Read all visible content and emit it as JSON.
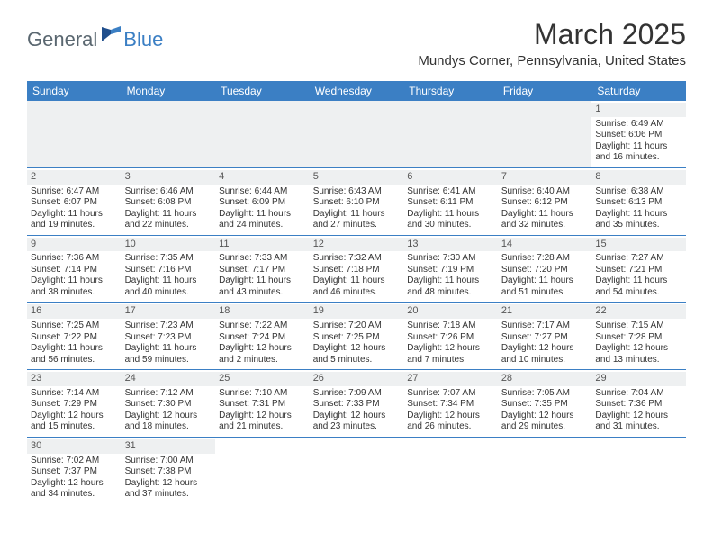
{
  "logo": {
    "part1": "General",
    "part2": "Blue"
  },
  "title": "March 2025",
  "location": "Mundys Corner, Pennsylvania, United States",
  "colors": {
    "header_bg": "#3b7fc4",
    "header_text": "#ffffff",
    "daynum_bg": "#eef0f1",
    "border": "#3b7fc4",
    "logo_gray": "#5a6770",
    "logo_blue": "#3b7fc4"
  },
  "daysOfWeek": [
    "Sunday",
    "Monday",
    "Tuesday",
    "Wednesday",
    "Thursday",
    "Friday",
    "Saturday"
  ],
  "weeks": [
    [
      null,
      null,
      null,
      null,
      null,
      null,
      {
        "num": "1",
        "sunrise": "Sunrise: 6:49 AM",
        "sunset": "Sunset: 6:06 PM",
        "daylight1": "Daylight: 11 hours",
        "daylight2": "and 16 minutes."
      }
    ],
    [
      {
        "num": "2",
        "sunrise": "Sunrise: 6:47 AM",
        "sunset": "Sunset: 6:07 PM",
        "daylight1": "Daylight: 11 hours",
        "daylight2": "and 19 minutes."
      },
      {
        "num": "3",
        "sunrise": "Sunrise: 6:46 AM",
        "sunset": "Sunset: 6:08 PM",
        "daylight1": "Daylight: 11 hours",
        "daylight2": "and 22 minutes."
      },
      {
        "num": "4",
        "sunrise": "Sunrise: 6:44 AM",
        "sunset": "Sunset: 6:09 PM",
        "daylight1": "Daylight: 11 hours",
        "daylight2": "and 24 minutes."
      },
      {
        "num": "5",
        "sunrise": "Sunrise: 6:43 AM",
        "sunset": "Sunset: 6:10 PM",
        "daylight1": "Daylight: 11 hours",
        "daylight2": "and 27 minutes."
      },
      {
        "num": "6",
        "sunrise": "Sunrise: 6:41 AM",
        "sunset": "Sunset: 6:11 PM",
        "daylight1": "Daylight: 11 hours",
        "daylight2": "and 30 minutes."
      },
      {
        "num": "7",
        "sunrise": "Sunrise: 6:40 AM",
        "sunset": "Sunset: 6:12 PM",
        "daylight1": "Daylight: 11 hours",
        "daylight2": "and 32 minutes."
      },
      {
        "num": "8",
        "sunrise": "Sunrise: 6:38 AM",
        "sunset": "Sunset: 6:13 PM",
        "daylight1": "Daylight: 11 hours",
        "daylight2": "and 35 minutes."
      }
    ],
    [
      {
        "num": "9",
        "sunrise": "Sunrise: 7:36 AM",
        "sunset": "Sunset: 7:14 PM",
        "daylight1": "Daylight: 11 hours",
        "daylight2": "and 38 minutes."
      },
      {
        "num": "10",
        "sunrise": "Sunrise: 7:35 AM",
        "sunset": "Sunset: 7:16 PM",
        "daylight1": "Daylight: 11 hours",
        "daylight2": "and 40 minutes."
      },
      {
        "num": "11",
        "sunrise": "Sunrise: 7:33 AM",
        "sunset": "Sunset: 7:17 PM",
        "daylight1": "Daylight: 11 hours",
        "daylight2": "and 43 minutes."
      },
      {
        "num": "12",
        "sunrise": "Sunrise: 7:32 AM",
        "sunset": "Sunset: 7:18 PM",
        "daylight1": "Daylight: 11 hours",
        "daylight2": "and 46 minutes."
      },
      {
        "num": "13",
        "sunrise": "Sunrise: 7:30 AM",
        "sunset": "Sunset: 7:19 PM",
        "daylight1": "Daylight: 11 hours",
        "daylight2": "and 48 minutes."
      },
      {
        "num": "14",
        "sunrise": "Sunrise: 7:28 AM",
        "sunset": "Sunset: 7:20 PM",
        "daylight1": "Daylight: 11 hours",
        "daylight2": "and 51 minutes."
      },
      {
        "num": "15",
        "sunrise": "Sunrise: 7:27 AM",
        "sunset": "Sunset: 7:21 PM",
        "daylight1": "Daylight: 11 hours",
        "daylight2": "and 54 minutes."
      }
    ],
    [
      {
        "num": "16",
        "sunrise": "Sunrise: 7:25 AM",
        "sunset": "Sunset: 7:22 PM",
        "daylight1": "Daylight: 11 hours",
        "daylight2": "and 56 minutes."
      },
      {
        "num": "17",
        "sunrise": "Sunrise: 7:23 AM",
        "sunset": "Sunset: 7:23 PM",
        "daylight1": "Daylight: 11 hours",
        "daylight2": "and 59 minutes."
      },
      {
        "num": "18",
        "sunrise": "Sunrise: 7:22 AM",
        "sunset": "Sunset: 7:24 PM",
        "daylight1": "Daylight: 12 hours",
        "daylight2": "and 2 minutes."
      },
      {
        "num": "19",
        "sunrise": "Sunrise: 7:20 AM",
        "sunset": "Sunset: 7:25 PM",
        "daylight1": "Daylight: 12 hours",
        "daylight2": "and 5 minutes."
      },
      {
        "num": "20",
        "sunrise": "Sunrise: 7:18 AM",
        "sunset": "Sunset: 7:26 PM",
        "daylight1": "Daylight: 12 hours",
        "daylight2": "and 7 minutes."
      },
      {
        "num": "21",
        "sunrise": "Sunrise: 7:17 AM",
        "sunset": "Sunset: 7:27 PM",
        "daylight1": "Daylight: 12 hours",
        "daylight2": "and 10 minutes."
      },
      {
        "num": "22",
        "sunrise": "Sunrise: 7:15 AM",
        "sunset": "Sunset: 7:28 PM",
        "daylight1": "Daylight: 12 hours",
        "daylight2": "and 13 minutes."
      }
    ],
    [
      {
        "num": "23",
        "sunrise": "Sunrise: 7:14 AM",
        "sunset": "Sunset: 7:29 PM",
        "daylight1": "Daylight: 12 hours",
        "daylight2": "and 15 minutes."
      },
      {
        "num": "24",
        "sunrise": "Sunrise: 7:12 AM",
        "sunset": "Sunset: 7:30 PM",
        "daylight1": "Daylight: 12 hours",
        "daylight2": "and 18 minutes."
      },
      {
        "num": "25",
        "sunrise": "Sunrise: 7:10 AM",
        "sunset": "Sunset: 7:31 PM",
        "daylight1": "Daylight: 12 hours",
        "daylight2": "and 21 minutes."
      },
      {
        "num": "26",
        "sunrise": "Sunrise: 7:09 AM",
        "sunset": "Sunset: 7:33 PM",
        "daylight1": "Daylight: 12 hours",
        "daylight2": "and 23 minutes."
      },
      {
        "num": "27",
        "sunrise": "Sunrise: 7:07 AM",
        "sunset": "Sunset: 7:34 PM",
        "daylight1": "Daylight: 12 hours",
        "daylight2": "and 26 minutes."
      },
      {
        "num": "28",
        "sunrise": "Sunrise: 7:05 AM",
        "sunset": "Sunset: 7:35 PM",
        "daylight1": "Daylight: 12 hours",
        "daylight2": "and 29 minutes."
      },
      {
        "num": "29",
        "sunrise": "Sunrise: 7:04 AM",
        "sunset": "Sunset: 7:36 PM",
        "daylight1": "Daylight: 12 hours",
        "daylight2": "and 31 minutes."
      }
    ],
    [
      {
        "num": "30",
        "sunrise": "Sunrise: 7:02 AM",
        "sunset": "Sunset: 7:37 PM",
        "daylight1": "Daylight: 12 hours",
        "daylight2": "and 34 minutes."
      },
      {
        "num": "31",
        "sunrise": "Sunrise: 7:00 AM",
        "sunset": "Sunset: 7:38 PM",
        "daylight1": "Daylight: 12 hours",
        "daylight2": "and 37 minutes."
      },
      null,
      null,
      null,
      null,
      null
    ]
  ]
}
